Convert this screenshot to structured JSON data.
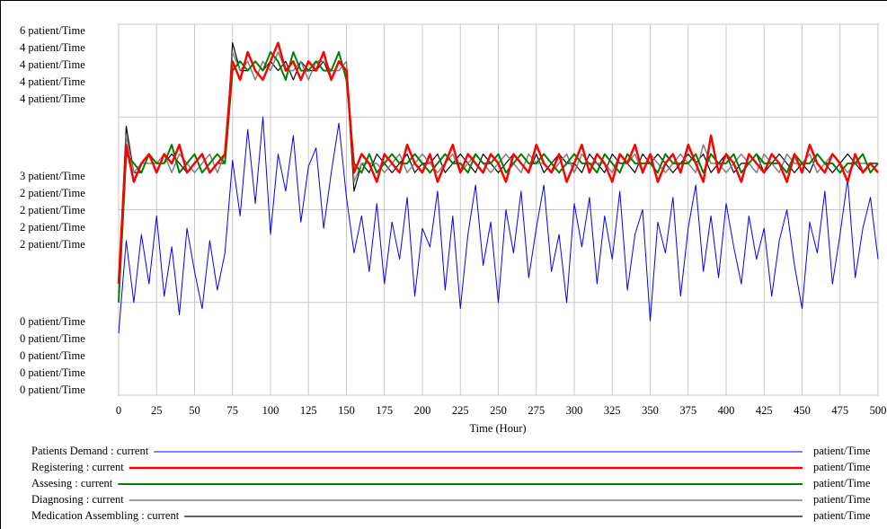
{
  "chart_data": {
    "type": "line",
    "xlabel": "Time (Hour)",
    "xlim": [
      0,
      500
    ],
    "xticks": [
      0,
      25,
      50,
      75,
      100,
      125,
      150,
      175,
      200,
      225,
      250,
      275,
      300,
      325,
      350,
      375,
      400,
      425,
      450,
      475,
      500
    ],
    "grid": true,
    "x": [
      0,
      5,
      10,
      15,
      20,
      25,
      30,
      35,
      40,
      45,
      50,
      55,
      60,
      65,
      70,
      75,
      80,
      85,
      90,
      95,
      100,
      105,
      110,
      115,
      120,
      125,
      130,
      135,
      140,
      145,
      150,
      155,
      160,
      165,
      170,
      175,
      180,
      185,
      190,
      195,
      200,
      205,
      210,
      215,
      220,
      225,
      230,
      235,
      240,
      245,
      250,
      255,
      260,
      265,
      270,
      275,
      280,
      285,
      290,
      295,
      300,
      305,
      310,
      315,
      320,
      325,
      330,
      335,
      340,
      345,
      350,
      355,
      360,
      365,
      370,
      375,
      380,
      385,
      390,
      395,
      400,
      405,
      410,
      415,
      420,
      425,
      430,
      435,
      440,
      445,
      450,
      455,
      460,
      465,
      470,
      475,
      480,
      485,
      490,
      495,
      500
    ],
    "series": [
      {
        "name": "Patients Demand : current",
        "unit": "patient/Time",
        "color": "#0000ff",
        "ylim": [
          0,
          6
        ],
        "yticks": [
          {
            "value": 0,
            "label": "0 patient/Time"
          },
          {
            "value": 3,
            "label": "3 patient/Time"
          },
          {
            "value": 6,
            "label": "6 patient/Time"
          }
        ],
        "values": [
          1.0,
          2.5,
          1.5,
          2.6,
          1.8,
          2.9,
          1.6,
          2.4,
          1.3,
          2.7,
          2.0,
          1.4,
          2.5,
          1.7,
          2.3,
          3.8,
          2.9,
          4.3,
          3.1,
          4.5,
          2.6,
          3.9,
          3.3,
          4.2,
          2.8,
          3.7,
          4.0,
          2.7,
          3.6,
          4.4,
          3.2,
          2.3,
          2.9,
          2.0,
          3.1,
          1.8,
          2.8,
          2.2,
          3.2,
          1.6,
          2.7,
          2.4,
          3.3,
          1.7,
          2.9,
          1.4,
          2.6,
          3.4,
          2.1,
          2.8,
          1.5,
          3.0,
          2.3,
          3.3,
          1.9,
          2.7,
          3.4,
          2.0,
          2.6,
          1.5,
          3.1,
          2.4,
          3.2,
          1.8,
          2.9,
          2.2,
          3.3,
          1.7,
          2.6,
          3.0,
          1.2,
          2.8,
          2.3,
          3.2,
          1.6,
          2.7,
          3.4,
          2.0,
          2.9,
          1.9,
          3.1,
          2.4,
          1.8,
          2.9,
          2.2,
          2.7,
          1.6,
          2.5,
          3.0,
          2.1,
          1.4,
          2.8,
          2.3,
          3.3,
          1.8,
          2.6,
          3.5,
          1.9,
          2.7,
          3.2,
          2.2
        ]
      },
      {
        "name": "Registering : current",
        "unit": "patient/Time",
        "color": "#ff0000",
        "ylim": [
          0,
          4
        ],
        "yticks": [
          {
            "value": 0,
            "label": "0 patient/Time"
          },
          {
            "value": 2,
            "label": "2 patient/Time"
          },
          {
            "value": 4,
            "label": "4 patient/Time"
          }
        ],
        "values": [
          1.2,
          2.7,
          2.3,
          2.5,
          2.6,
          2.4,
          2.6,
          2.5,
          2.7,
          2.4,
          2.5,
          2.6,
          2.4,
          2.5,
          2.6,
          3.6,
          3.4,
          3.7,
          3.5,
          3.4,
          3.6,
          3.8,
          3.5,
          3.6,
          3.4,
          3.6,
          3.5,
          3.7,
          3.4,
          3.6,
          3.5,
          2.4,
          2.6,
          2.5,
          2.3,
          2.6,
          2.5,
          2.4,
          2.7,
          2.5,
          2.4,
          2.6,
          2.3,
          2.5,
          2.7,
          2.4,
          2.6,
          2.5,
          2.4,
          2.6,
          2.5,
          2.3,
          2.6,
          2.5,
          2.4,
          2.7,
          2.5,
          2.4,
          2.6,
          2.3,
          2.5,
          2.7,
          2.4,
          2.6,
          2.5,
          2.3,
          2.6,
          2.5,
          2.7,
          2.4,
          2.6,
          2.3,
          2.5,
          2.6,
          2.4,
          2.7,
          2.5,
          2.3,
          2.8,
          2.4,
          2.6,
          2.5,
          2.3,
          2.6,
          2.5,
          2.4,
          2.6,
          2.5,
          2.3,
          2.6,
          2.4,
          2.7,
          2.5,
          2.4,
          2.6,
          2.5,
          2.3,
          2.6,
          2.4,
          2.5,
          2.4
        ]
      },
      {
        "name": "Assesing : current",
        "unit": "patient/Time",
        "color": "#008000",
        "ylim": [
          0,
          4
        ],
        "yticks": [
          {
            "value": 0,
            "label": "0 patient/Time"
          },
          {
            "value": 2,
            "label": "2 patient/Time"
          },
          {
            "value": 4,
            "label": "4 patient/Time"
          }
        ],
        "values": [
          1.0,
          2.6,
          2.5,
          2.4,
          2.6,
          2.5,
          2.5,
          2.7,
          2.4,
          2.5,
          2.6,
          2.4,
          2.5,
          2.6,
          2.5,
          3.5,
          3.6,
          3.5,
          3.6,
          3.5,
          3.7,
          3.6,
          3.4,
          3.7,
          3.5,
          3.5,
          3.6,
          3.5,
          3.5,
          3.7,
          3.4,
          2.5,
          2.4,
          2.6,
          2.4,
          2.5,
          2.6,
          2.5,
          2.5,
          2.6,
          2.5,
          2.4,
          2.5,
          2.6,
          2.5,
          2.5,
          2.4,
          2.6,
          2.5,
          2.5,
          2.6,
          2.4,
          2.5,
          2.6,
          2.5,
          2.5,
          2.6,
          2.5,
          2.4,
          2.5,
          2.6,
          2.5,
          2.5,
          2.4,
          2.6,
          2.5,
          2.4,
          2.6,
          2.5,
          2.5,
          2.5,
          2.4,
          2.6,
          2.5,
          2.5,
          2.5,
          2.6,
          2.4,
          2.6,
          2.5,
          2.5,
          2.6,
          2.4,
          2.5,
          2.6,
          2.5,
          2.5,
          2.5,
          2.4,
          2.6,
          2.5,
          2.5,
          2.6,
          2.5,
          2.5,
          2.4,
          2.5,
          2.5,
          2.6,
          2.4,
          2.5
        ]
      },
      {
        "name": "Diagnosing : current",
        "unit": "patient/Time",
        "color": "#808080",
        "ylim": [
          0,
          4
        ],
        "yticks": [
          {
            "value": 0,
            "label": "0 patient/Time"
          },
          {
            "value": 2,
            "label": "2 patient/Time"
          },
          {
            "value": 4,
            "label": "4 patient/Time"
          }
        ],
        "values": [
          1.1,
          2.8,
          2.4,
          2.5,
          2.5,
          2.5,
          2.6,
          2.4,
          2.6,
          2.5,
          2.4,
          2.5,
          2.6,
          2.4,
          2.6,
          3.7,
          3.5,
          3.6,
          3.4,
          3.6,
          3.5,
          3.7,
          3.5,
          3.5,
          3.6,
          3.4,
          3.6,
          3.6,
          3.5,
          3.5,
          3.6,
          2.3,
          2.5,
          2.5,
          2.5,
          2.4,
          2.5,
          2.6,
          2.4,
          2.5,
          2.6,
          2.5,
          2.4,
          2.5,
          2.6,
          2.4,
          2.5,
          2.6,
          2.5,
          2.4,
          2.5,
          2.6,
          2.5,
          2.4,
          2.6,
          2.5,
          2.5,
          2.4,
          2.5,
          2.6,
          2.4,
          2.6,
          2.5,
          2.5,
          2.5,
          2.4,
          2.6,
          2.5,
          2.6,
          2.4,
          2.6,
          2.5,
          2.4,
          2.5,
          2.6,
          2.5,
          2.4,
          2.7,
          2.5,
          2.5,
          2.4,
          2.5,
          2.6,
          2.5,
          2.4,
          2.6,
          2.5,
          2.4,
          2.6,
          2.5,
          2.5,
          2.6,
          2.4,
          2.5,
          2.6,
          2.5,
          2.4,
          2.5,
          2.5,
          2.5,
          2.4
        ]
      },
      {
        "name": "Medication Assembling : current",
        "unit": "patient/Time",
        "color": "#000000",
        "ylim": [
          0,
          4
        ],
        "yticks": [
          {
            "value": 0,
            "label": "0 patient/Time"
          },
          {
            "value": 2,
            "label": "2 patient/Time"
          },
          {
            "value": 4,
            "label": "4 patient/Time"
          }
        ],
        "values": [
          1.2,
          2.9,
          2.4,
          2.4,
          2.6,
          2.5,
          2.5,
          2.6,
          2.5,
          2.4,
          2.5,
          2.6,
          2.4,
          2.5,
          2.5,
          3.8,
          3.5,
          3.5,
          3.6,
          3.5,
          3.6,
          3.5,
          3.6,
          3.4,
          3.6,
          3.5,
          3.5,
          3.6,
          3.4,
          3.6,
          3.5,
          2.2,
          2.5,
          2.4,
          2.6,
          2.5,
          2.4,
          2.5,
          2.6,
          2.4,
          2.5,
          2.5,
          2.6,
          2.4,
          2.5,
          2.6,
          2.5,
          2.4,
          2.6,
          2.5,
          2.4,
          2.5,
          2.6,
          2.5,
          2.4,
          2.6,
          2.4,
          2.5,
          2.6,
          2.5,
          2.5,
          2.4,
          2.6,
          2.5,
          2.4,
          2.6,
          2.5,
          2.5,
          2.4,
          2.6,
          2.5,
          2.6,
          2.5,
          2.4,
          2.5,
          2.6,
          2.5,
          2.6,
          2.4,
          2.5,
          2.6,
          2.4,
          2.5,
          2.5,
          2.6,
          2.4,
          2.5,
          2.6,
          2.5,
          2.4,
          2.5,
          2.4,
          2.6,
          2.5,
          2.4,
          2.5,
          2.6,
          2.5,
          2.4,
          2.5,
          2.5
        ]
      }
    ]
  }
}
